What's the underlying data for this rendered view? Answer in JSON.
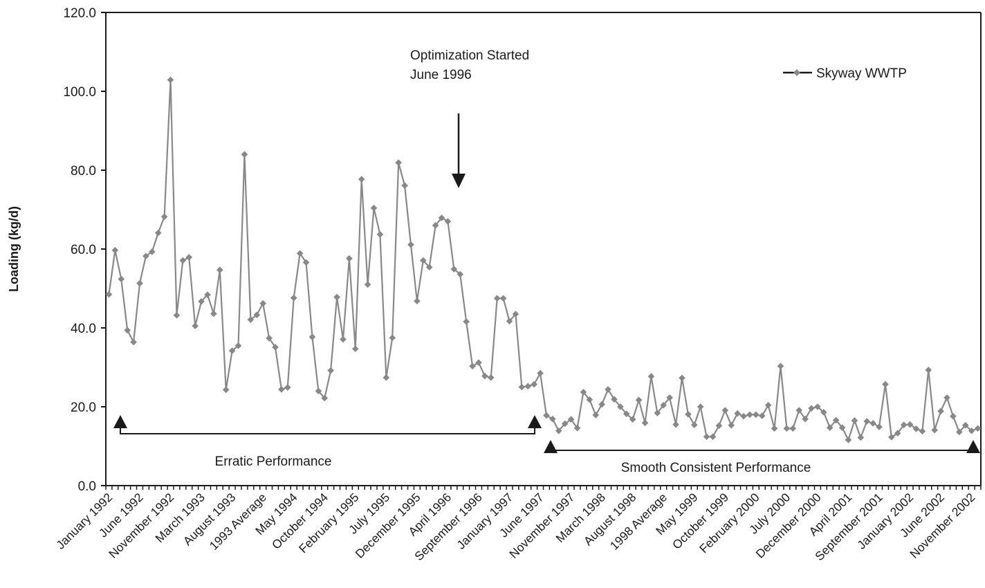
{
  "chart_data": {
    "type": "line",
    "title": "",
    "xlabel": "",
    "ylabel": "Loading (kg/d)",
    "ylim": [
      0,
      120
    ],
    "yticks": [
      "0.0",
      "20.0",
      "40.0",
      "60.0",
      "80.0",
      "100.0",
      "120.0"
    ],
    "grid": false,
    "legend_position": "top-right",
    "x_tick_labels": [
      "January 1992",
      "June 1992",
      "November 1992",
      "March 1993",
      "August 1993",
      "1993 Average",
      "May 1994",
      "October 1994",
      "February 1995",
      "July 1995",
      "December 1995",
      "April 1996",
      "September 1996",
      "January 1997",
      "June 1997",
      "November 1997",
      "March 1998",
      "August 1998",
      "1998 Average",
      "May 1999",
      "October 1999",
      "February 2000",
      "July 2000",
      "December 2000",
      "April 2001",
      "September 2001",
      "January 2002",
      "June 2002",
      "November 2002"
    ],
    "series": [
      {
        "name": "Skyway WWTP",
        "color": "#888888",
        "values": [
          48.5,
          59.7,
          52.4,
          39.4,
          36.4,
          51.3,
          58.2,
          59.3,
          64.1,
          68.2,
          102.9,
          43.2,
          57.1,
          57.9,
          40.5,
          46.7,
          48.4,
          43.6,
          54.7,
          24.3,
          34.2,
          35.5,
          84.0,
          42.1,
          43.3,
          46.2,
          37.4,
          35.1,
          24.4,
          24.9,
          47.6,
          58.9,
          56.6,
          37.7,
          24.0,
          22.2,
          29.2,
          47.8,
          37.1,
          57.6,
          34.7,
          77.7,
          51.0,
          70.4,
          63.7,
          27.4,
          37.5,
          81.9,
          76.1,
          61.1,
          46.8,
          57.1,
          55.4,
          66.0,
          67.9,
          67.0,
          54.9,
          53.6,
          41.6,
          30.3,
          31.2,
          27.8,
          27.4,
          47.5,
          47.5,
          41.7,
          43.5,
          25.0,
          25.2,
          25.7,
          28.5,
          17.8,
          16.9,
          13.9,
          15.7,
          16.8,
          14.6,
          23.7,
          21.8,
          17.9,
          20.6,
          24.4,
          21.9,
          20.0,
          18.2,
          16.8,
          21.7,
          15.9,
          27.7,
          18.4,
          20.4,
          22.3,
          15.5,
          27.3,
          18.1,
          15.4,
          20.0,
          12.4,
          12.4,
          15.2,
          19.1,
          15.3,
          18.3,
          17.6,
          18.0,
          18.0,
          17.7,
          20.4,
          14.5,
          30.3,
          14.5,
          14.5,
          19.1,
          16.9,
          19.6,
          20.0,
          18.6,
          14.7,
          16.6,
          14.7,
          11.6,
          16.5,
          12.2,
          16.3,
          15.8,
          14.9,
          25.7,
          12.3,
          13.3,
          15.4,
          15.5,
          14.4,
          13.8,
          29.3,
          14.1,
          18.9,
          22.3,
          17.6,
          13.6,
          15.3,
          13.9,
          14.5
        ]
      }
    ],
    "annotations": {
      "optimization_line1": "Optimization Started",
      "optimization_line2": "June 1996",
      "erratic": "Erratic Performance",
      "smooth": "Smooth Consistent Performance"
    }
  }
}
